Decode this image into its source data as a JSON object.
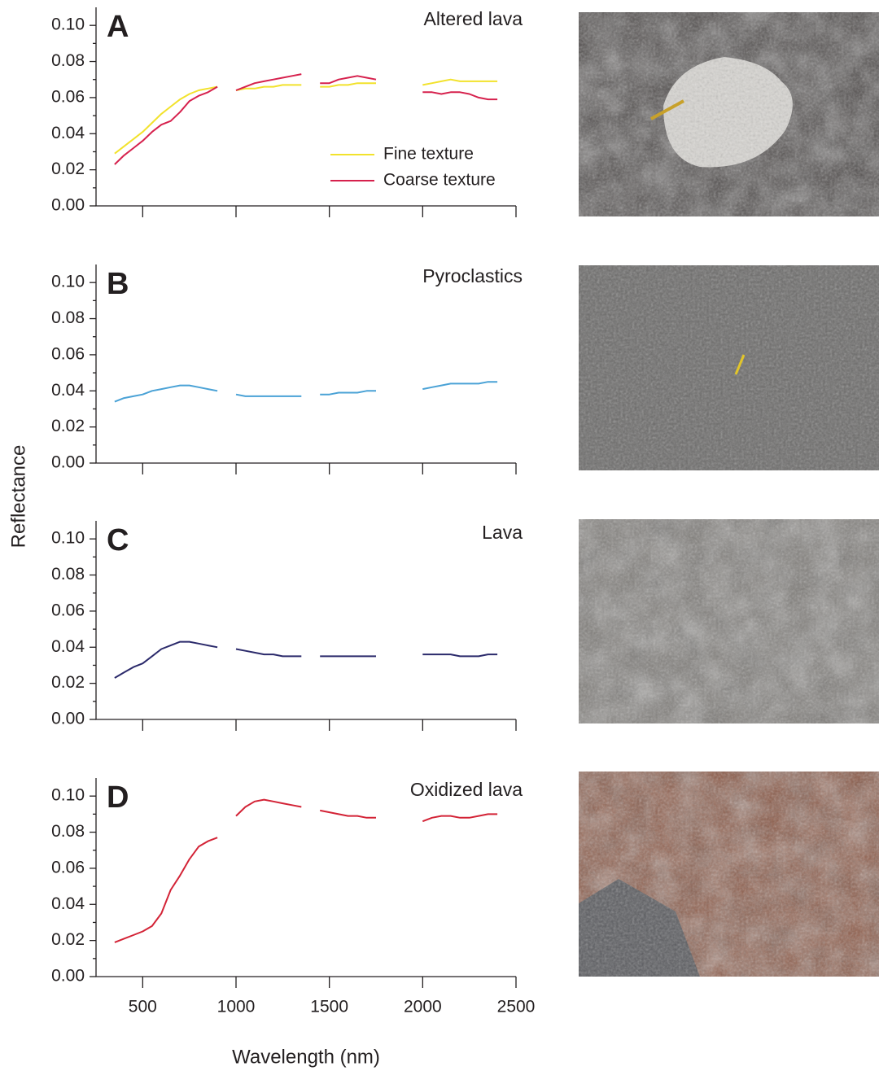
{
  "ylabel": "Reflectance",
  "xlabel": "Wavelength (nm)",
  "chart_data": [
    {
      "type": "line",
      "label": "A",
      "title": "Altered lava",
      "x": [
        350,
        400,
        450,
        500,
        550,
        600,
        650,
        700,
        750,
        800,
        850,
        900,
        950,
        1000,
        1050,
        1100,
        1150,
        1200,
        1250,
        1300,
        1350,
        1400,
        1450,
        1500,
        1550,
        1600,
        1650,
        1700,
        1750,
        1800,
        1850,
        1900,
        1950,
        2000,
        2050,
        2100,
        2150,
        2200,
        2250,
        2300,
        2350,
        2400
      ],
      "series": [
        {
          "name": "Fine texture",
          "color": "#f2e22c",
          "values": [
            0.029,
            0.033,
            0.037,
            0.041,
            0.046,
            0.051,
            0.055,
            0.059,
            0.062,
            0.064,
            0.065,
            0.066,
            null,
            0.064,
            0.065,
            0.065,
            0.066,
            0.066,
            0.067,
            0.067,
            0.067,
            null,
            0.066,
            0.066,
            0.067,
            0.067,
            0.068,
            0.068,
            0.068,
            null,
            null,
            null,
            null,
            0.067,
            0.068,
            0.069,
            0.07,
            0.069,
            0.069,
            0.069,
            0.069,
            0.069
          ]
        },
        {
          "name": "Coarse texture",
          "color": "#d6214d",
          "values": [
            0.023,
            0.028,
            0.032,
            0.036,
            0.041,
            0.045,
            0.047,
            0.052,
            0.058,
            0.061,
            0.063,
            0.066,
            null,
            0.064,
            0.066,
            0.068,
            0.069,
            0.07,
            0.071,
            0.072,
            0.073,
            null,
            0.068,
            0.068,
            0.07,
            0.071,
            0.072,
            0.071,
            0.07,
            null,
            null,
            null,
            null,
            0.063,
            0.063,
            0.062,
            0.063,
            0.063,
            0.062,
            0.06,
            0.059,
            0.059
          ]
        }
      ],
      "legend": "center-right",
      "xlim": [
        250,
        2500
      ],
      "xticks": [
        500,
        1000,
        1500,
        2000,
        2500
      ],
      "xtick_labels": false,
      "ylim": [
        0,
        0.11
      ],
      "yticks": [
        {
          "value": 0,
          "label": "0.00"
        },
        {
          "value": 0.02,
          "label": "0.02"
        },
        {
          "value": 0.04,
          "label": "0.04"
        },
        {
          "value": 0.06,
          "label": "0.06"
        },
        {
          "value": 0.08,
          "label": "0.08"
        },
        {
          "value": 0.1,
          "label": "0.10"
        }
      ]
    },
    {
      "type": "line",
      "label": "B",
      "title": "Pyroclastics",
      "x": [
        350,
        400,
        450,
        500,
        550,
        600,
        650,
        700,
        750,
        800,
        850,
        900,
        950,
        1000,
        1050,
        1100,
        1150,
        1200,
        1250,
        1300,
        1350,
        1400,
        1450,
        1500,
        1550,
        1600,
        1650,
        1700,
        1750,
        1800,
        1850,
        1900,
        1950,
        2000,
        2050,
        2100,
        2150,
        2200,
        2250,
        2300,
        2350,
        2400
      ],
      "series": [
        {
          "color": "#4aa2d6",
          "values": [
            0.034,
            0.036,
            0.037,
            0.038,
            0.04,
            0.041,
            0.042,
            0.043,
            0.043,
            0.042,
            0.041,
            0.04,
            null,
            0.038,
            0.037,
            0.037,
            0.037,
            0.037,
            0.037,
            0.037,
            0.037,
            null,
            0.038,
            0.038,
            0.039,
            0.039,
            0.039,
            0.04,
            0.04,
            null,
            null,
            null,
            null,
            0.041,
            0.042,
            0.043,
            0.044,
            0.044,
            0.044,
            0.044,
            0.045,
            0.045
          ]
        }
      ],
      "xlim": [
        250,
        2500
      ],
      "xticks": [
        500,
        1000,
        1500,
        2000,
        2500
      ],
      "xtick_labels": false,
      "ylim": [
        0,
        0.11
      ],
      "yticks": [
        {
          "value": 0,
          "label": "0.00"
        },
        {
          "value": 0.02,
          "label": "0.02"
        },
        {
          "value": 0.04,
          "label": "0.04"
        },
        {
          "value": 0.06,
          "label": "0.06"
        },
        {
          "value": 0.08,
          "label": "0.08"
        },
        {
          "value": 0.1,
          "label": "0.10"
        }
      ]
    },
    {
      "type": "line",
      "label": "C",
      "title": "Lava",
      "x": [
        350,
        400,
        450,
        500,
        550,
        600,
        650,
        700,
        750,
        800,
        850,
        900,
        950,
        1000,
        1050,
        1100,
        1150,
        1200,
        1250,
        1300,
        1350,
        1400,
        1450,
        1500,
        1550,
        1600,
        1650,
        1700,
        1750,
        1800,
        1850,
        1900,
        1950,
        2000,
        2050,
        2100,
        2150,
        2200,
        2250,
        2300,
        2350,
        2400
      ],
      "series": [
        {
          "color": "#2b2a6b",
          "values": [
            0.023,
            0.026,
            0.029,
            0.031,
            0.035,
            0.039,
            0.041,
            0.043,
            0.043,
            0.042,
            0.041,
            0.04,
            null,
            0.039,
            0.038,
            0.037,
            0.036,
            0.036,
            0.035,
            0.035,
            0.035,
            null,
            0.035,
            0.035,
            0.035,
            0.035,
            0.035,
            0.035,
            0.035,
            null,
            null,
            null,
            null,
            0.036,
            0.036,
            0.036,
            0.036,
            0.035,
            0.035,
            0.035,
            0.036,
            0.036
          ]
        }
      ],
      "xlim": [
        250,
        2500
      ],
      "xticks": [
        500,
        1000,
        1500,
        2000,
        2500
      ],
      "xtick_labels": false,
      "ylim": [
        0,
        0.11
      ],
      "yticks": [
        {
          "value": 0,
          "label": "0.00"
        },
        {
          "value": 0.02,
          "label": "0.02"
        },
        {
          "value": 0.04,
          "label": "0.04"
        },
        {
          "value": 0.06,
          "label": "0.06"
        },
        {
          "value": 0.08,
          "label": "0.08"
        },
        {
          "value": 0.1,
          "label": "0.10"
        }
      ]
    },
    {
      "type": "line",
      "label": "D",
      "title": "Oxidized lava",
      "x": [
        350,
        400,
        450,
        500,
        550,
        600,
        650,
        700,
        750,
        800,
        850,
        900,
        950,
        1000,
        1050,
        1100,
        1150,
        1200,
        1250,
        1300,
        1350,
        1400,
        1450,
        1500,
        1550,
        1600,
        1650,
        1700,
        1750,
        1800,
        1850,
        1900,
        1950,
        2000,
        2050,
        2100,
        2150,
        2200,
        2250,
        2300,
        2350,
        2400
      ],
      "series": [
        {
          "color": "#d32336",
          "values": [
            0.019,
            0.021,
            0.023,
            0.025,
            0.028,
            0.035,
            0.048,
            0.056,
            0.065,
            0.072,
            0.075,
            0.077,
            null,
            0.089,
            0.094,
            0.097,
            0.098,
            0.097,
            0.096,
            0.095,
            0.094,
            null,
            0.092,
            0.091,
            0.09,
            0.089,
            0.089,
            0.088,
            0.088,
            null,
            null,
            null,
            null,
            0.086,
            0.088,
            0.089,
            0.089,
            0.088,
            0.088,
            0.089,
            0.09,
            0.09
          ]
        }
      ],
      "xlim": [
        250,
        2500
      ],
      "xticks": [
        500,
        1000,
        1500,
        2000,
        2500
      ],
      "xtick_labels": true,
      "ylim": [
        0,
        0.11
      ],
      "yticks": [
        {
          "value": 0,
          "label": "0.00"
        },
        {
          "value": 0.02,
          "label": "0.02"
        },
        {
          "value": 0.04,
          "label": "0.04"
        },
        {
          "value": 0.06,
          "label": "0.06"
        },
        {
          "value": 0.08,
          "label": "0.08"
        },
        {
          "value": 0.1,
          "label": "0.10"
        }
      ]
    }
  ]
}
